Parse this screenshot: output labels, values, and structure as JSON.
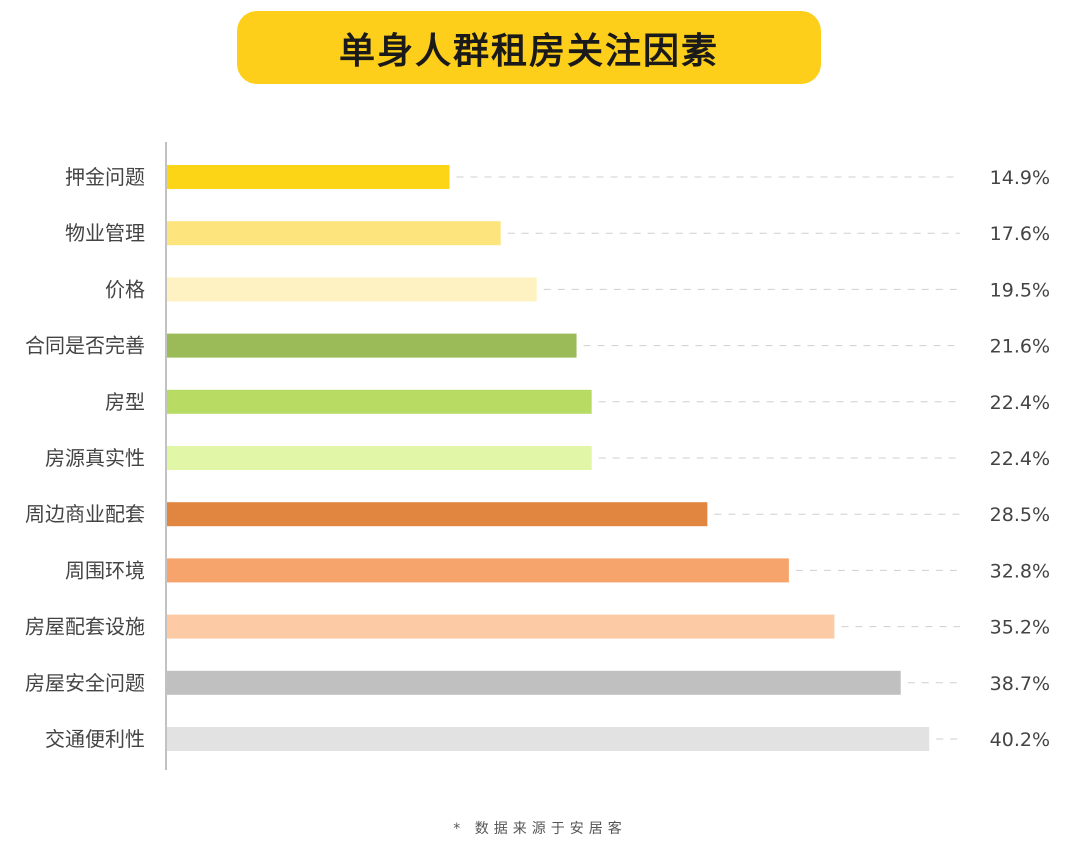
{
  "header": {
    "title": "单身人群租房关注因素"
  },
  "footer": {
    "source": "* 数据来源于安居客"
  },
  "chart_data": {
    "type": "bar",
    "orientation": "horizontal",
    "title": "单身人群租房关注因素",
    "categories": [
      "押金问题",
      "物业管理",
      "价格",
      "合同是否完善",
      "房型",
      "房源真实性",
      "周边商业配套",
      "周围环境",
      "房屋配套设施",
      "房屋安全问题",
      "交通便利性"
    ],
    "values": [
      14.9,
      17.6,
      19.5,
      21.6,
      22.4,
      22.4,
      28.5,
      32.8,
      35.2,
      38.7,
      40.2
    ],
    "value_labels": [
      "14.9%",
      "17.6%",
      "19.5%",
      "21.6%",
      "22.4%",
      "22.4%",
      "28.5%",
      "32.8%",
      "35.2%",
      "38.7%",
      "40.2%"
    ],
    "unit": "%",
    "colors": [
      "#FDD517",
      "#FDE47C",
      "#FEF2C2",
      "#9BBB59",
      "#B8DB64",
      "#E2F6A7",
      "#E08640",
      "#F6A46C",
      "#FCCAA4",
      "#C0C0C0",
      "#E2E2E2"
    ],
    "grid": "dashed guide lines to value labels",
    "legend": "none"
  }
}
